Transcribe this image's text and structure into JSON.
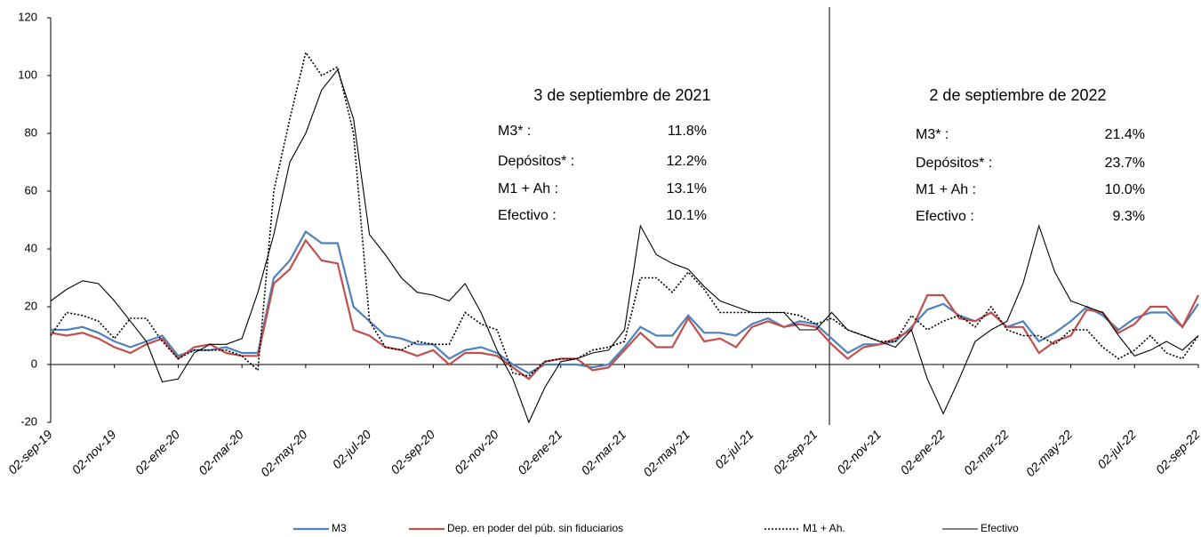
{
  "chart_data": {
    "type": "line",
    "categories": [
      "02-sep-19",
      null,
      null,
      null,
      "02-nov-19",
      null,
      null,
      null,
      "02-ene-20",
      null,
      null,
      null,
      "02-mar-20",
      null,
      null,
      null,
      "02-may-20",
      null,
      null,
      null,
      "02-jul-20",
      null,
      null,
      null,
      "02-sep-20",
      null,
      null,
      null,
      "02-nov-20",
      null,
      null,
      null,
      "02-ene-21",
      null,
      null,
      null,
      "02-mar-21",
      null,
      null,
      null,
      "02-may-21",
      null,
      null,
      null,
      "02-jul-21",
      null,
      null,
      null,
      "02-sep-21",
      null,
      null,
      null,
      "02-nov-21",
      null,
      null,
      null,
      "02-ene-22",
      null,
      null,
      null,
      "02-mar-22",
      null,
      null,
      null,
      "02-may-22",
      null,
      null,
      null,
      "02-jul-22",
      null,
      null,
      null,
      "02-sep-22"
    ],
    "series": [
      {
        "name": "M3",
        "color": "#4f81bd",
        "style": "solid",
        "values": [
          12,
          12,
          13,
          11,
          8,
          6,
          8,
          10,
          3,
          5,
          5,
          6,
          4,
          4,
          30,
          36,
          46,
          42,
          42,
          20,
          15,
          10,
          9,
          7,
          7,
          2,
          5,
          6,
          4,
          0,
          -3,
          0,
          0,
          0,
          -1,
          0,
          6,
          13,
          10,
          10,
          17,
          11,
          11,
          10,
          14,
          16,
          13,
          15,
          14,
          9,
          4,
          7,
          7,
          8,
          13,
          19,
          21,
          17,
          15,
          18,
          13,
          15,
          8,
          11,
          15,
          20,
          17,
          12,
          16,
          18,
          18,
          13,
          21
        ]
      },
      {
        "name": "Dep. en poder del púb. sin fiduciarios",
        "color": "#c0504d",
        "style": "solid",
        "values": [
          11,
          10,
          11,
          9,
          6,
          4,
          7,
          9,
          2,
          6,
          7,
          4,
          3,
          3,
          28,
          33,
          43,
          36,
          35,
          12,
          10,
          6,
          5,
          3,
          5,
          0,
          4,
          4,
          3,
          -1,
          -5,
          1,
          2,
          2,
          -2,
          -1,
          5,
          11,
          6,
          6,
          16,
          8,
          9,
          6,
          13,
          15,
          13,
          14,
          13,
          7,
          2,
          6,
          7,
          9,
          12,
          24,
          24,
          16,
          15,
          18,
          13,
          13,
          4,
          8,
          10,
          19,
          18,
          11,
          14,
          20,
          20,
          13,
          24
        ]
      },
      {
        "name": "M1 + Ah.",
        "color": "#000000",
        "style": "dotted",
        "values": [
          10,
          18,
          17,
          15,
          9,
          16,
          16,
          8,
          2,
          5,
          5,
          5,
          3,
          -2,
          60,
          85,
          108,
          100,
          103,
          80,
          15,
          6,
          5,
          8,
          7,
          7,
          18,
          14,
          12,
          -3,
          -4,
          1,
          2,
          2,
          5,
          6,
          8,
          30,
          30,
          25,
          32,
          26,
          18,
          18,
          18,
          18,
          18,
          17,
          14,
          16,
          12,
          10,
          8,
          8,
          17,
          12,
          15,
          17,
          13,
          20,
          12,
          10,
          10,
          7,
          12,
          12,
          6,
          2,
          5,
          10,
          4,
          2,
          10
        ]
      },
      {
        "name": "Efectivo",
        "color": "#000000",
        "style": "solid",
        "values": [
          22,
          26,
          29,
          28,
          22,
          15,
          8,
          -6,
          -5,
          4,
          7,
          7,
          9,
          25,
          45,
          70,
          80,
          95,
          102,
          85,
          45,
          38,
          30,
          25,
          24,
          22,
          28,
          18,
          5,
          -5,
          -20,
          -8,
          1,
          2,
          4,
          5,
          12,
          48,
          38,
          35,
          33,
          27,
          22,
          20,
          18,
          18,
          18,
          12,
          12,
          18,
          12,
          10,
          8,
          6,
          12,
          -5,
          -17,
          -5,
          8,
          12,
          15,
          28,
          48,
          32,
          22,
          20,
          18,
          10,
          3,
          5,
          8,
          5,
          10
        ]
      }
    ],
    "ylim": [
      -20,
      120
    ],
    "yticks": [
      -20,
      0,
      20,
      40,
      60,
      80,
      100,
      120
    ],
    "annotations": [
      {
        "title": "3 de septiembre de 2021",
        "rows": [
          [
            "M3* :",
            "11.8%"
          ],
          [
            "Depósitos* :",
            "12.2%"
          ],
          [
            "M1 + Ah :",
            "13.1%"
          ],
          [
            "Efectivo :",
            "10.1%"
          ]
        ]
      },
      {
        "title": "2 de septiembre de 2022",
        "rows": [
          [
            "M3* :",
            "21.4%"
          ],
          [
            "Depósitos* :",
            "23.7%"
          ],
          [
            "M1 + Ah :",
            "10.0%"
          ],
          [
            "Efectivo :",
            "9.3%"
          ]
        ]
      }
    ],
    "legend": "bottom"
  }
}
